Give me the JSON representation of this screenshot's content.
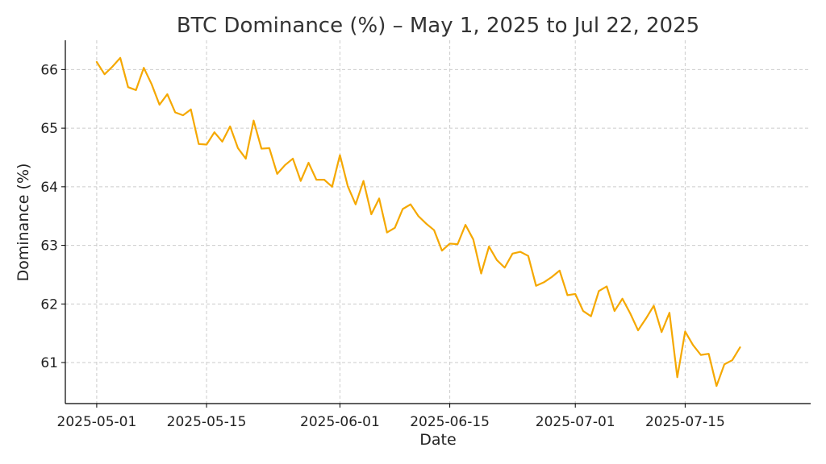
{
  "chart_data": {
    "type": "line",
    "title": "BTC Dominance (%) – May 1, 2025 to Jul 22, 2025",
    "xlabel": "Date",
    "ylabel": "Dominance (%)",
    "xlim": [
      "2025-04-27",
      "2025-07-31"
    ],
    "ylim": [
      60.3,
      66.5
    ],
    "x_ticks": [
      "2025-05-01",
      "2025-05-15",
      "2025-06-01",
      "2025-06-15",
      "2025-07-01",
      "2025-07-15"
    ],
    "y_ticks": [
      61,
      62,
      63,
      64,
      65,
      66
    ],
    "grid": true,
    "series": [
      {
        "color": "#f5a800",
        "x_start": "2025-05-01",
        "x_step_days": 1,
        "values": [
          66.13,
          65.92,
          66.05,
          66.2,
          65.7,
          65.65,
          66.03,
          65.75,
          65.4,
          65.58,
          65.27,
          65.22,
          65.32,
          64.73,
          64.72,
          64.93,
          64.77,
          65.03,
          64.66,
          64.48,
          65.13,
          64.65,
          64.66,
          64.22,
          64.37,
          64.48,
          64.1,
          64.41,
          64.12,
          64.12,
          64.0,
          64.54,
          64.01,
          63.7,
          64.1,
          63.53,
          63.8,
          63.22,
          63.3,
          63.62,
          63.7,
          63.5,
          63.37,
          63.26,
          62.91,
          63.03,
          63.02,
          63.35,
          63.1,
          62.52,
          62.98,
          62.75,
          62.62,
          62.86,
          62.89,
          62.82,
          62.31,
          62.37,
          62.46,
          62.57,
          62.15,
          62.17,
          61.88,
          61.79,
          62.22,
          62.3,
          61.88,
          62.09,
          61.84,
          61.55,
          61.75,
          61.97,
          61.52,
          61.85,
          60.75,
          61.53,
          61.3,
          61.13,
          61.15,
          60.6,
          60.97,
          61.04,
          61.26
        ]
      }
    ]
  }
}
